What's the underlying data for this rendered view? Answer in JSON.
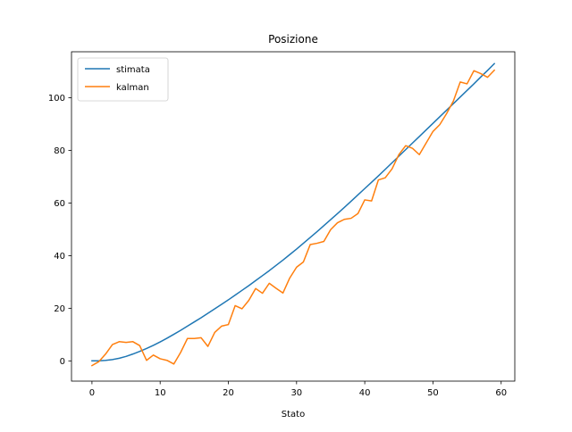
{
  "chart_data": {
    "type": "line",
    "title": "Posizione",
    "xlabel": "Stato",
    "ylabel": "",
    "xlim": [
      -3,
      62
    ],
    "ylim": [
      -7.7,
      117.5
    ],
    "xticks": [
      0,
      10,
      20,
      30,
      40,
      50,
      60
    ],
    "yticks": [
      0,
      20,
      40,
      60,
      80,
      100
    ],
    "grid": false,
    "legend_position": "top-left",
    "x": [
      0,
      1,
      2,
      3,
      4,
      5,
      6,
      7,
      8,
      9,
      10,
      11,
      12,
      13,
      14,
      15,
      16,
      17,
      18,
      19,
      20,
      21,
      22,
      23,
      24,
      25,
      26,
      27,
      28,
      29,
      30,
      31,
      32,
      33,
      34,
      35,
      36,
      37,
      38,
      39,
      40,
      41,
      42,
      43,
      44,
      45,
      46,
      47,
      48,
      49,
      50,
      51,
      52,
      53,
      54,
      55,
      56,
      57,
      58,
      59
    ],
    "series": [
      {
        "name": "stimata",
        "color": "#1f77b4",
        "values": [
          0.0,
          0.0,
          0.2,
          0.5,
          1.0,
          1.7,
          2.6,
          3.6,
          4.7,
          5.9,
          7.2,
          8.6,
          10.1,
          11.6,
          13.2,
          14.8,
          16.4,
          18.1,
          19.8,
          21.5,
          23.2,
          25.0,
          26.8,
          28.6,
          30.5,
          32.4,
          34.3,
          36.3,
          38.3,
          40.4,
          42.5,
          44.7,
          46.9,
          49.1,
          51.4,
          53.7,
          56.0,
          58.3,
          60.7,
          63.1,
          65.5,
          67.9,
          70.3,
          72.8,
          75.3,
          77.8,
          80.3,
          82.8,
          85.3,
          87.8,
          90.3,
          92.8,
          95.3,
          97.8,
          100.3,
          102.8,
          105.3,
          107.9,
          110.4,
          113.0
        ]
      },
      {
        "name": "kalman",
        "color": "#ff7f0e",
        "values": [
          -1.8,
          -0.3,
          2.6,
          6.2,
          7.3,
          7.0,
          7.3,
          5.8,
          0.2,
          2.2,
          0.8,
          0.2,
          -1.2,
          3.2,
          8.5,
          8.5,
          8.8,
          5.5,
          10.8,
          13.2,
          13.8,
          21.0,
          19.8,
          23.0,
          27.5,
          25.7,
          29.5,
          27.6,
          25.8,
          31.5,
          35.6,
          37.6,
          44.2,
          44.7,
          45.4,
          49.9,
          52.5,
          53.8,
          54.2,
          56.0,
          61.2,
          60.8,
          68.8,
          69.6,
          73.0,
          78.4,
          81.8,
          80.8,
          78.4,
          82.8,
          87.2,
          89.8,
          94.0,
          98.8,
          106.0,
          105.3,
          110.3,
          109.2,
          107.8,
          110.5
        ]
      }
    ]
  }
}
